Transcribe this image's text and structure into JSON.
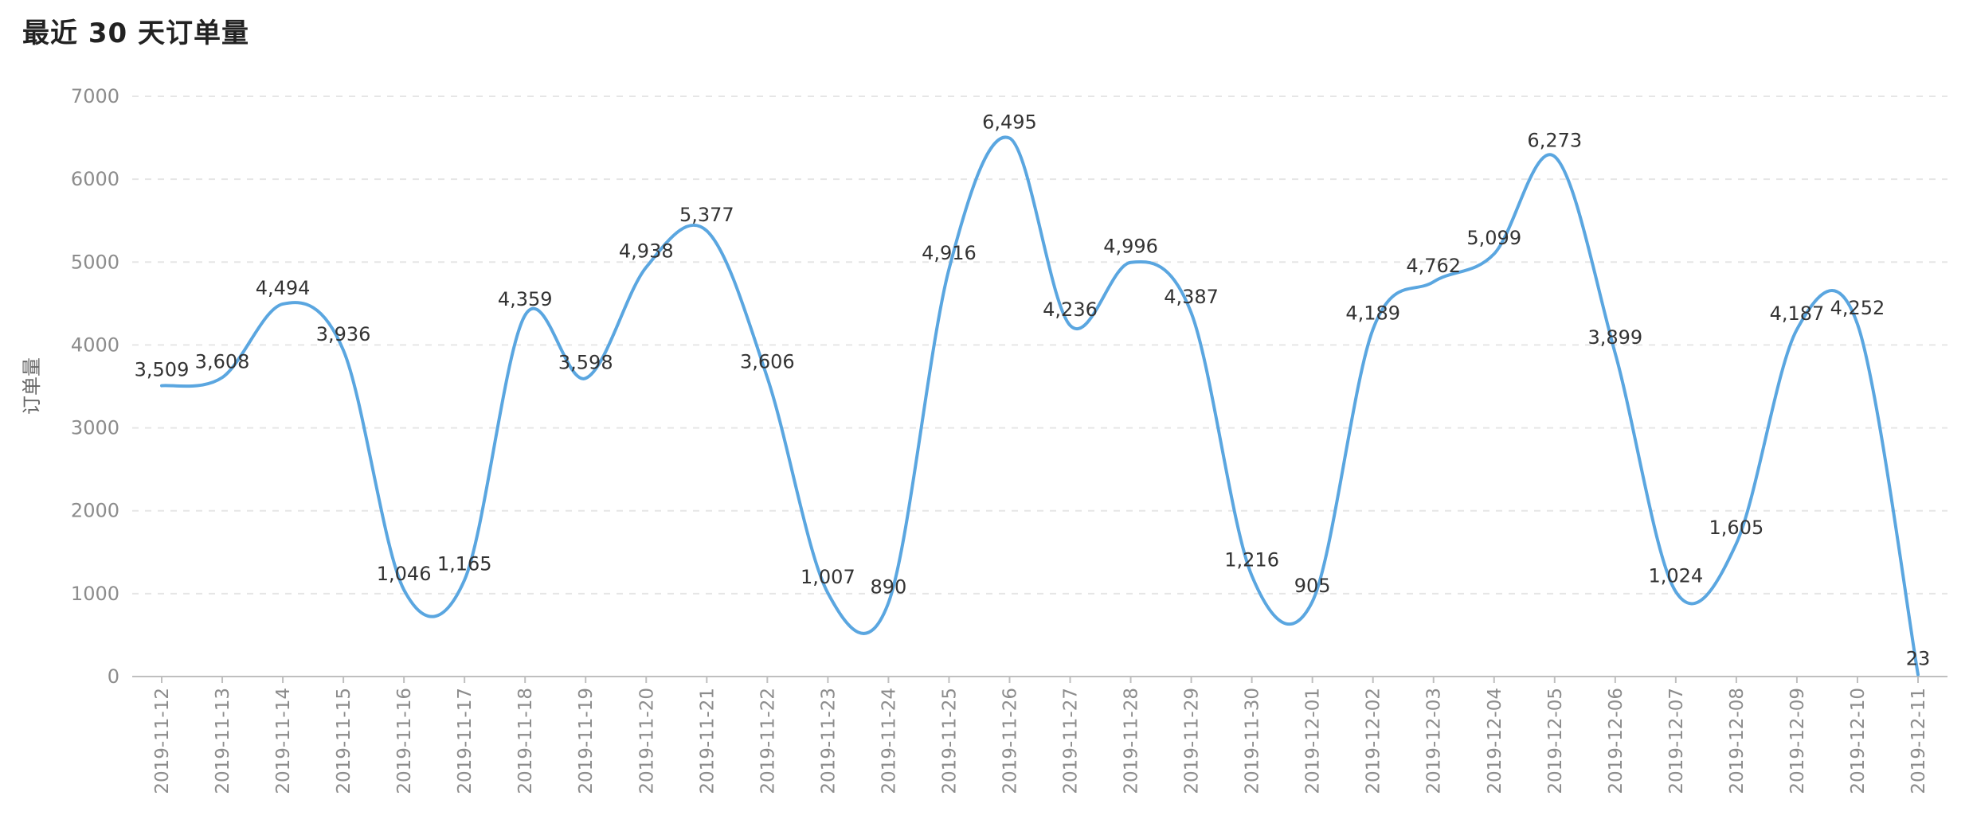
{
  "page": {
    "title": "最近 30 天订单量"
  },
  "chart_data": {
    "type": "line",
    "title": "最近 30 天订单量",
    "xlabel": "",
    "ylabel": "订单量",
    "ylim": [
      0,
      7000
    ],
    "yticks": [
      0,
      1000,
      2000,
      3000,
      4000,
      5000,
      6000,
      7000
    ],
    "grid": true,
    "smooth": true,
    "line_color": "#5aa6e0",
    "categories": [
      "2019-11-12",
      "2019-11-13",
      "2019-11-14",
      "2019-11-15",
      "2019-11-16",
      "2019-11-17",
      "2019-11-18",
      "2019-11-19",
      "2019-11-20",
      "2019-11-21",
      "2019-11-22",
      "2019-11-23",
      "2019-11-24",
      "2019-11-25",
      "2019-11-26",
      "2019-11-27",
      "2019-11-28",
      "2019-11-29",
      "2019-11-30",
      "2019-12-01",
      "2019-12-02",
      "2019-12-03",
      "2019-12-04",
      "2019-12-05",
      "2019-12-06",
      "2019-12-07",
      "2019-12-08",
      "2019-12-09",
      "2019-12-10",
      "2019-12-11"
    ],
    "values": [
      3509,
      3608,
      4494,
      3936,
      1046,
      1165,
      4359,
      3598,
      4938,
      5377,
      3606,
      1007,
      890,
      4916,
      6495,
      4236,
      4996,
      4387,
      1216,
      905,
      4189,
      4762,
      5099,
      6273,
      3899,
      1024,
      1605,
      4187,
      4252,
      23
    ],
    "value_labels": [
      "3,509",
      "3,608",
      "4,494",
      "3,936",
      "1,046",
      "1,165",
      "4,359",
      "3,598",
      "4,938",
      "5,377",
      "3,606",
      "1,007",
      "890",
      "4,916",
      "6,495",
      "4,236",
      "4,996",
      "4,387",
      "1,216",
      "905",
      "4,189",
      "4,762",
      "5,099",
      "6,273",
      "3,899",
      "1,024",
      "1,605",
      "4,187",
      "4,252",
      "23"
    ]
  }
}
